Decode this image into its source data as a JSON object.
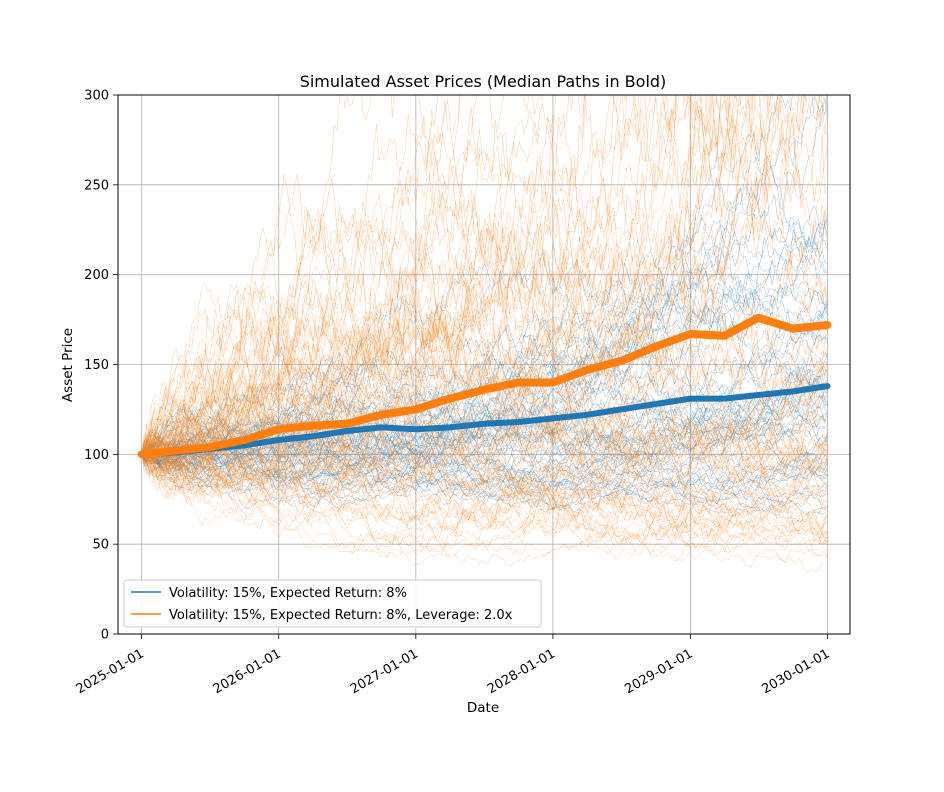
{
  "chart_data": {
    "type": "line",
    "title": "Simulated Asset Prices (Median Paths in Bold)",
    "xlabel": "Date",
    "ylabel": "Asset Price",
    "xlim": [
      "2024-10-30",
      "2030-03-02"
    ],
    "ylim": [
      0,
      300
    ],
    "xticks": [
      "2025-01-01",
      "2026-01-01",
      "2027-01-01",
      "2028-01-01",
      "2029-01-01",
      "2030-01-01"
    ],
    "yticks": [
      0,
      50,
      100,
      150,
      200,
      250,
      300
    ],
    "grid": true,
    "legend_position": "lower-left",
    "series": [
      {
        "name": "Volatility: 15%, Expected Return: 8%",
        "color": "#1f77b4",
        "median_path": {
          "x": [
            "2025-01-01",
            "2025-04-01",
            "2025-07-01",
            "2025-10-01",
            "2026-01-01",
            "2026-04-01",
            "2026-07-01",
            "2026-10-01",
            "2027-01-01",
            "2027-04-01",
            "2027-07-01",
            "2027-10-01",
            "2028-01-01",
            "2028-04-01",
            "2028-07-01",
            "2028-10-01",
            "2029-01-01",
            "2029-04-01",
            "2029-07-01",
            "2029-10-01",
            "2030-01-01"
          ],
          "y": [
            100,
            101,
            103,
            105,
            108,
            110,
            113,
            115,
            114,
            115,
            117,
            118,
            120,
            122,
            125,
            128,
            131,
            131,
            133,
            135,
            138
          ]
        }
      },
      {
        "name": "Volatility: 15%, Expected Return: 8%, Leverage: 2.0x",
        "color": "#ff7f0e",
        "median_path": {
          "x": [
            "2025-01-01",
            "2025-04-01",
            "2025-07-01",
            "2025-10-01",
            "2026-01-01",
            "2026-04-01",
            "2026-07-01",
            "2026-10-01",
            "2027-01-01",
            "2027-04-01",
            "2027-07-01",
            "2027-10-01",
            "2028-01-01",
            "2028-04-01",
            "2028-07-01",
            "2028-10-01",
            "2029-01-01",
            "2029-04-01",
            "2029-07-01",
            "2029-10-01",
            "2030-01-01"
          ],
          "y": [
            100,
            102,
            104,
            108,
            114,
            116,
            117,
            122,
            125,
            131,
            136,
            140,
            140,
            147,
            152,
            160,
            167,
            166,
            176,
            170,
            172
          ]
        }
      }
    ]
  }
}
